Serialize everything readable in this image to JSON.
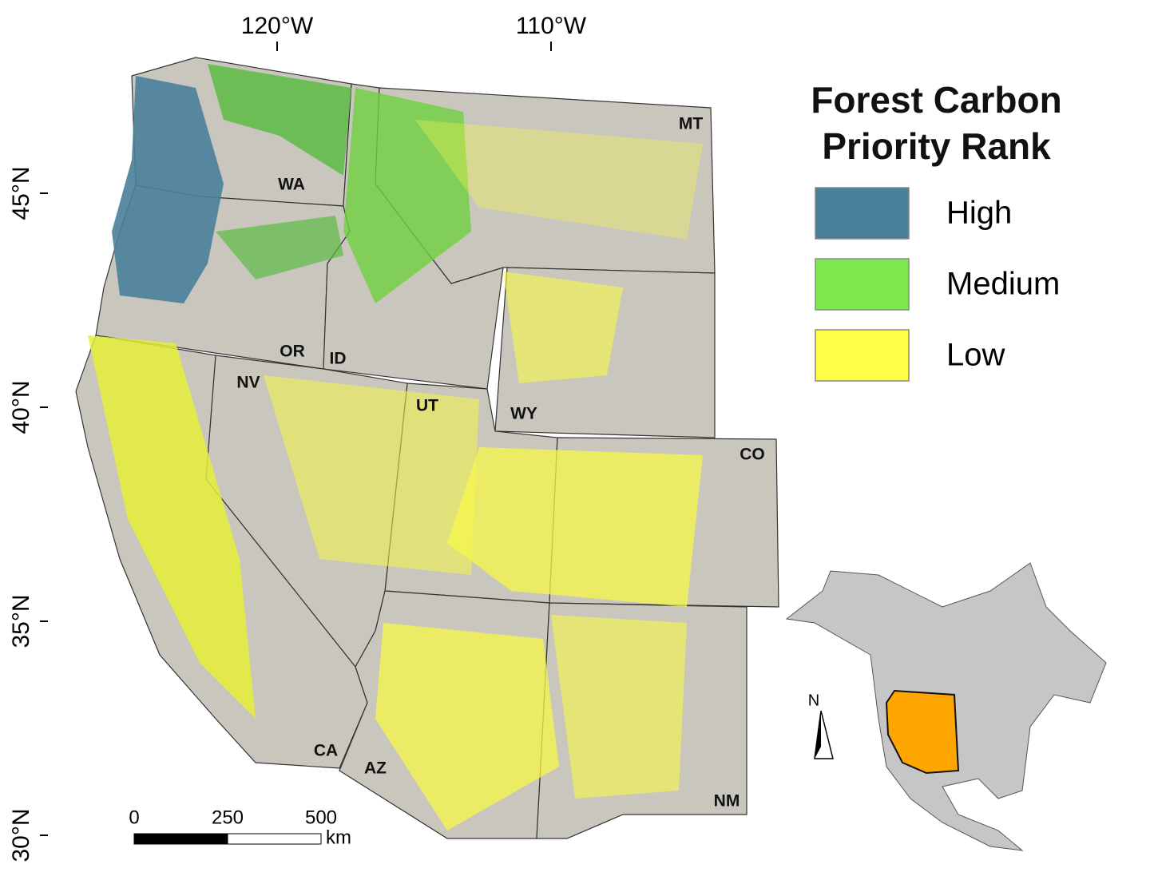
{
  "graticule": {
    "lon_ticks": [
      {
        "value": -120,
        "label": "120°W"
      },
      {
        "value": -110,
        "label": "110°W"
      }
    ],
    "lat_ticks": [
      {
        "value": 45,
        "label": "45°N"
      },
      {
        "value": 40,
        "label": "40°N"
      },
      {
        "value": 35,
        "label": "35°N"
      },
      {
        "value": 30,
        "label": "30°N"
      }
    ]
  },
  "states": [
    "MT",
    "WA",
    "OR",
    "ID",
    "NV",
    "UT",
    "WY",
    "CO",
    "CA",
    "AZ",
    "NM"
  ],
  "legend": {
    "title": "Forest Carbon Priority Rank",
    "items": [
      {
        "label": "High",
        "color": "#4a7f9a"
      },
      {
        "label": "Medium",
        "color": "#7de84e"
      },
      {
        "label": "Low",
        "color": "#ffff45"
      }
    ]
  },
  "scale_bar": {
    "ticks": [
      0,
      250,
      500
    ],
    "unit": "km"
  },
  "north_arrow": "N"
}
